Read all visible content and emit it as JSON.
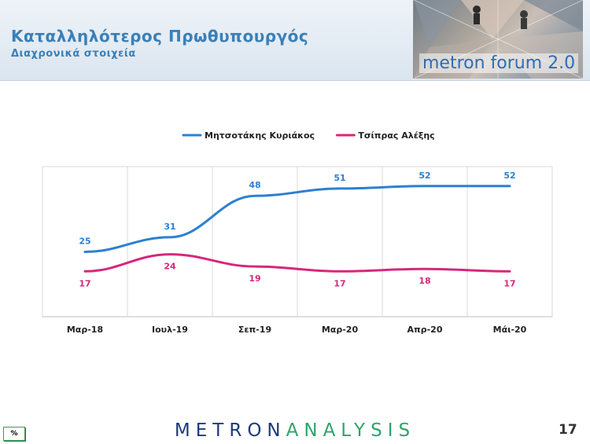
{
  "header": {
    "title": "Καταλληλότερος Πρωθυπουργός",
    "subtitle": "Διαχρονικά στοιχεία",
    "banner_text": "metron forum 2.0"
  },
  "chart_data": {
    "type": "line",
    "categories": [
      "Μαρ-18",
      "Ιουλ-19",
      "Σεπ-19",
      "Μαρ-20",
      "Απρ-20",
      "Μάι-20"
    ],
    "series": [
      {
        "name": "Μητσοτάκης Κυριάκος",
        "color": "#2b80d1",
        "values": [
          25,
          31,
          48,
          51,
          52,
          52
        ]
      },
      {
        "name": "Τσίπρας Αλέξης",
        "color": "#d6287c",
        "values": [
          17,
          24,
          19,
          17,
          18,
          17
        ]
      }
    ],
    "ylim": [
      0,
      60
    ],
    "grid": "vertical",
    "legend": "top"
  },
  "footer": {
    "badge": "%",
    "logo_part1": "METRON",
    "logo_part2": "ANALYSIS",
    "page_number": "17"
  }
}
